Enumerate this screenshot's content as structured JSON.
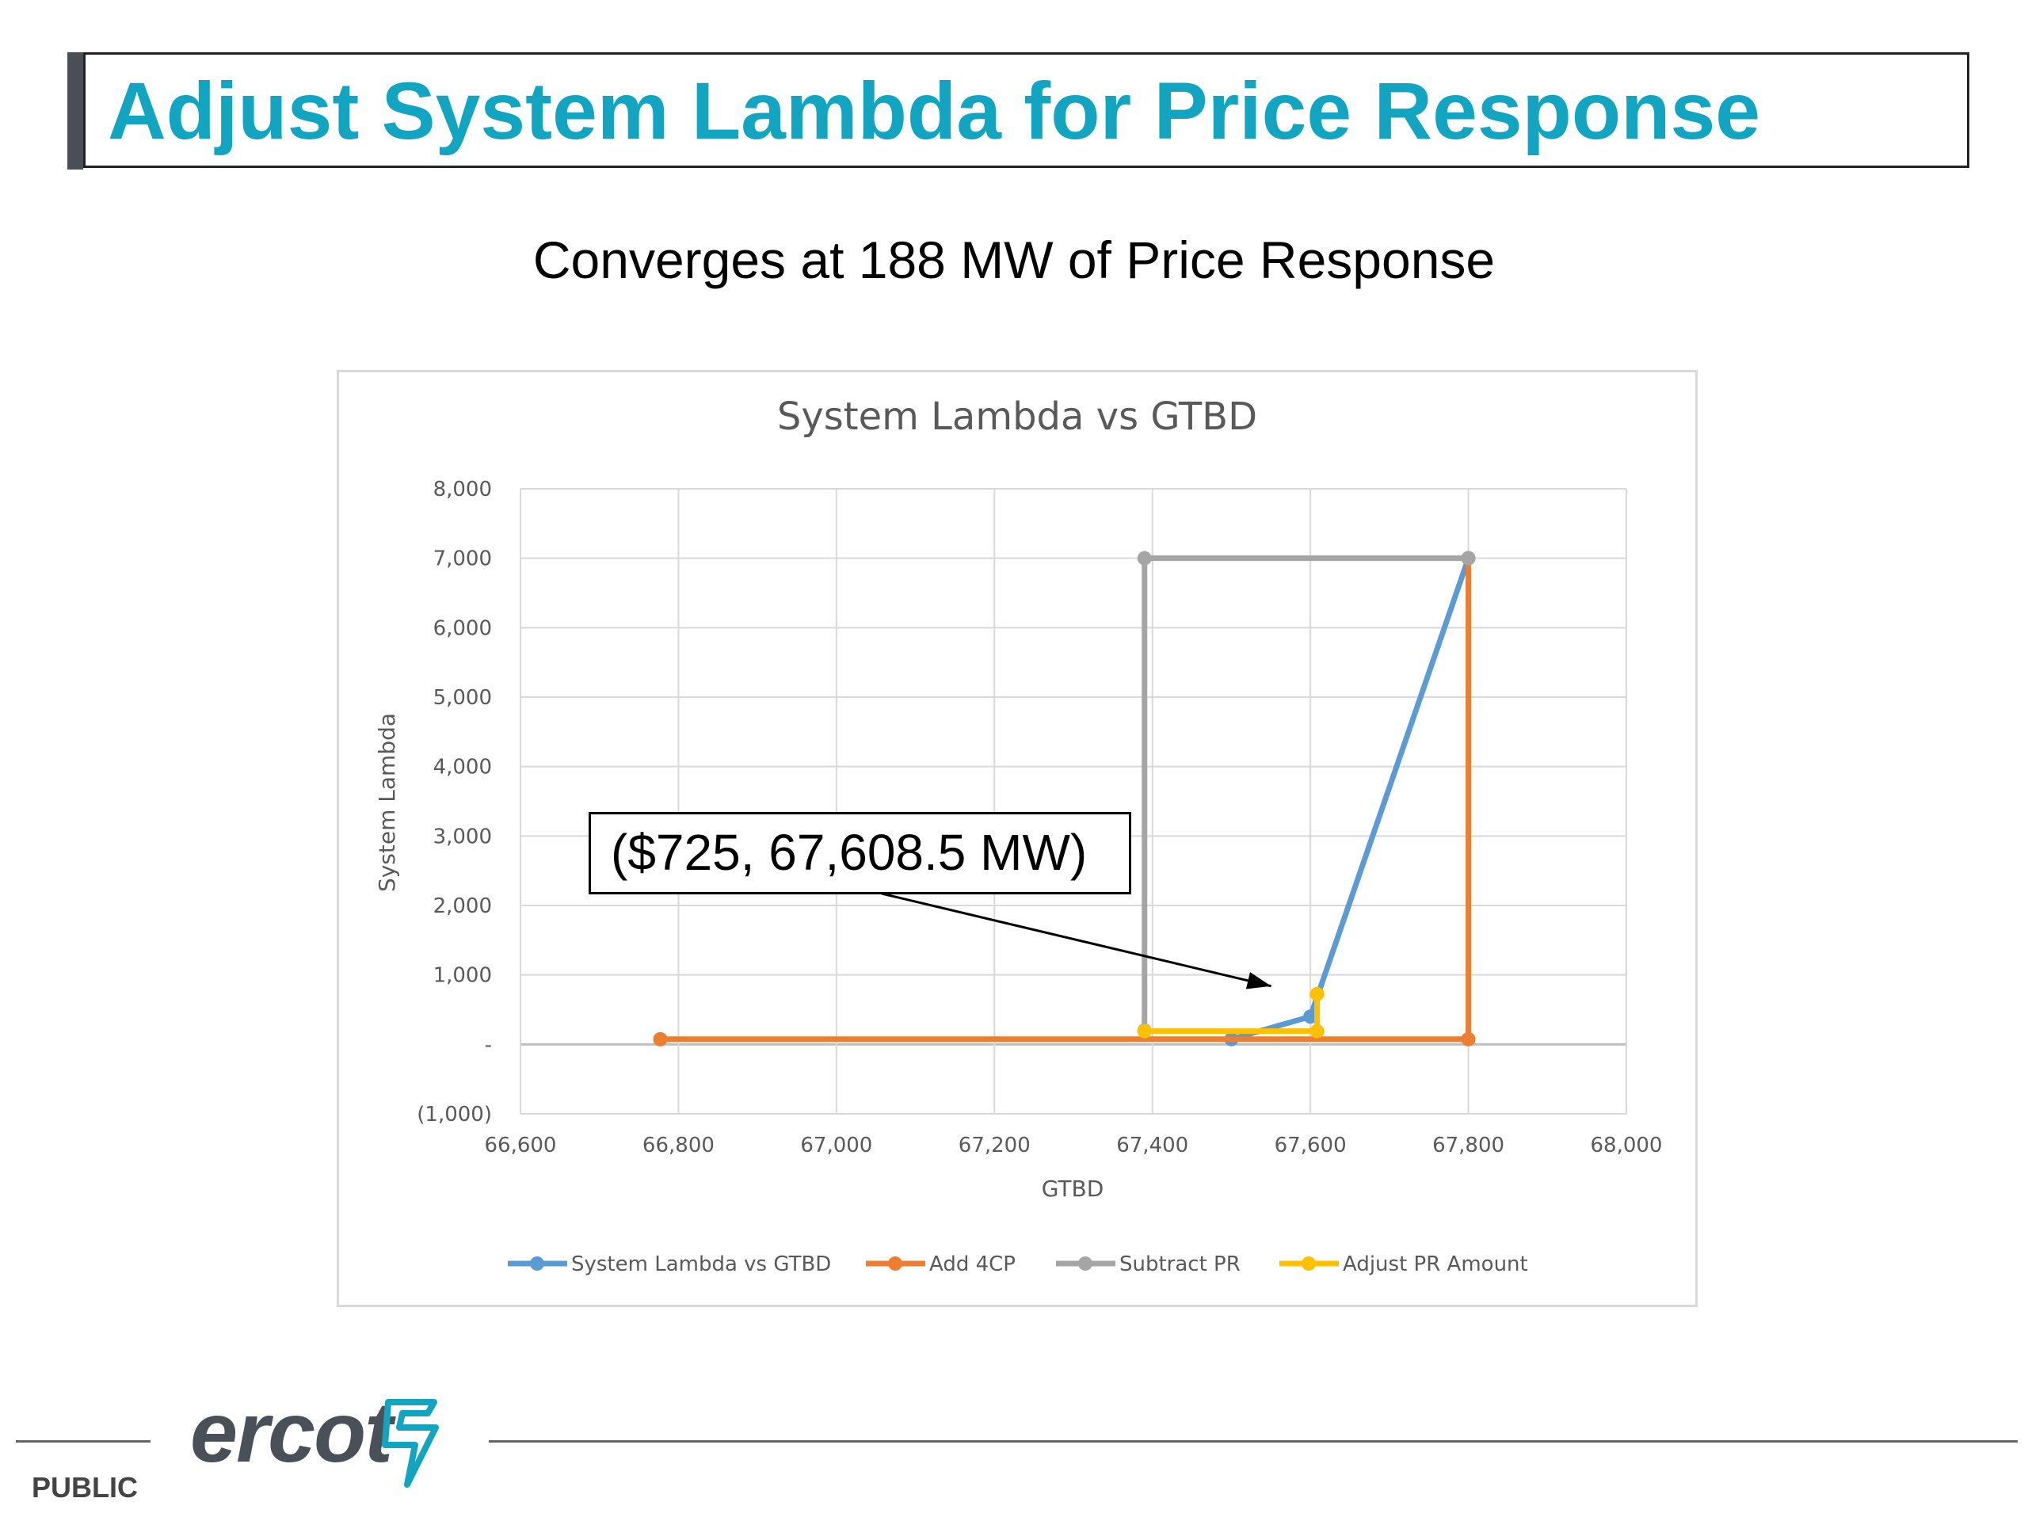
{
  "slide": {
    "title": "Adjust System Lambda for Price Response",
    "subtitle": "Converges at 188 MW of Price Response",
    "callout": "($725, 67,608.5 MW)",
    "footer_label": "PUBLIC",
    "logo_text": "ercot"
  },
  "colors": {
    "title": "#12a5c2",
    "blue": "#5b9bd5",
    "orange": "#ed7d31",
    "gray": "#a5a5a5",
    "yellow": "#ffc000"
  },
  "chart_data": {
    "type": "scatter",
    "title": "System Lambda vs GTBD",
    "xlabel": "GTBD",
    "ylabel": "System Lambda",
    "xlim": [
      66600,
      68000
    ],
    "ylim": [
      -1000,
      8000
    ],
    "x_ticks": [
      66600,
      66800,
      67000,
      67200,
      67400,
      67600,
      67800,
      68000
    ],
    "x_tick_labels": [
      "66,600",
      "66,800",
      "67,000",
      "67,200",
      "67,400",
      "67,600",
      "67,800",
      "68,000"
    ],
    "y_ticks": [
      -1000,
      0,
      1000,
      2000,
      3000,
      4000,
      5000,
      6000,
      7000,
      8000
    ],
    "y_tick_labels": [
      "(1,000)",
      "-",
      "1,000",
      "2,000",
      "3,000",
      "4,000",
      "5,000",
      "6,000",
      "7,000",
      "8,000"
    ],
    "grid": true,
    "legend_position": "bottom",
    "series": [
      {
        "name": "System Lambda vs GTBD",
        "color": "#5b9bd5",
        "points": [
          [
            67500,
            75
          ],
          [
            67600,
            400
          ],
          [
            67800,
            7000
          ]
        ]
      },
      {
        "name": "Add 4CP",
        "color": "#ed7d31",
        "points": [
          [
            66777,
            75
          ],
          [
            67800,
            75
          ],
          [
            67800,
            7000
          ]
        ]
      },
      {
        "name": "Subtract PR",
        "color": "#a5a5a5",
        "points": [
          [
            67390,
            200
          ],
          [
            67390,
            7000
          ],
          [
            67800,
            7000
          ]
        ]
      },
      {
        "name": "Adjust PR Amount",
        "color": "#ffc000",
        "points": [
          [
            67390,
            190
          ],
          [
            67608.5,
            190
          ],
          [
            67608.5,
            725
          ]
        ]
      }
    ]
  }
}
